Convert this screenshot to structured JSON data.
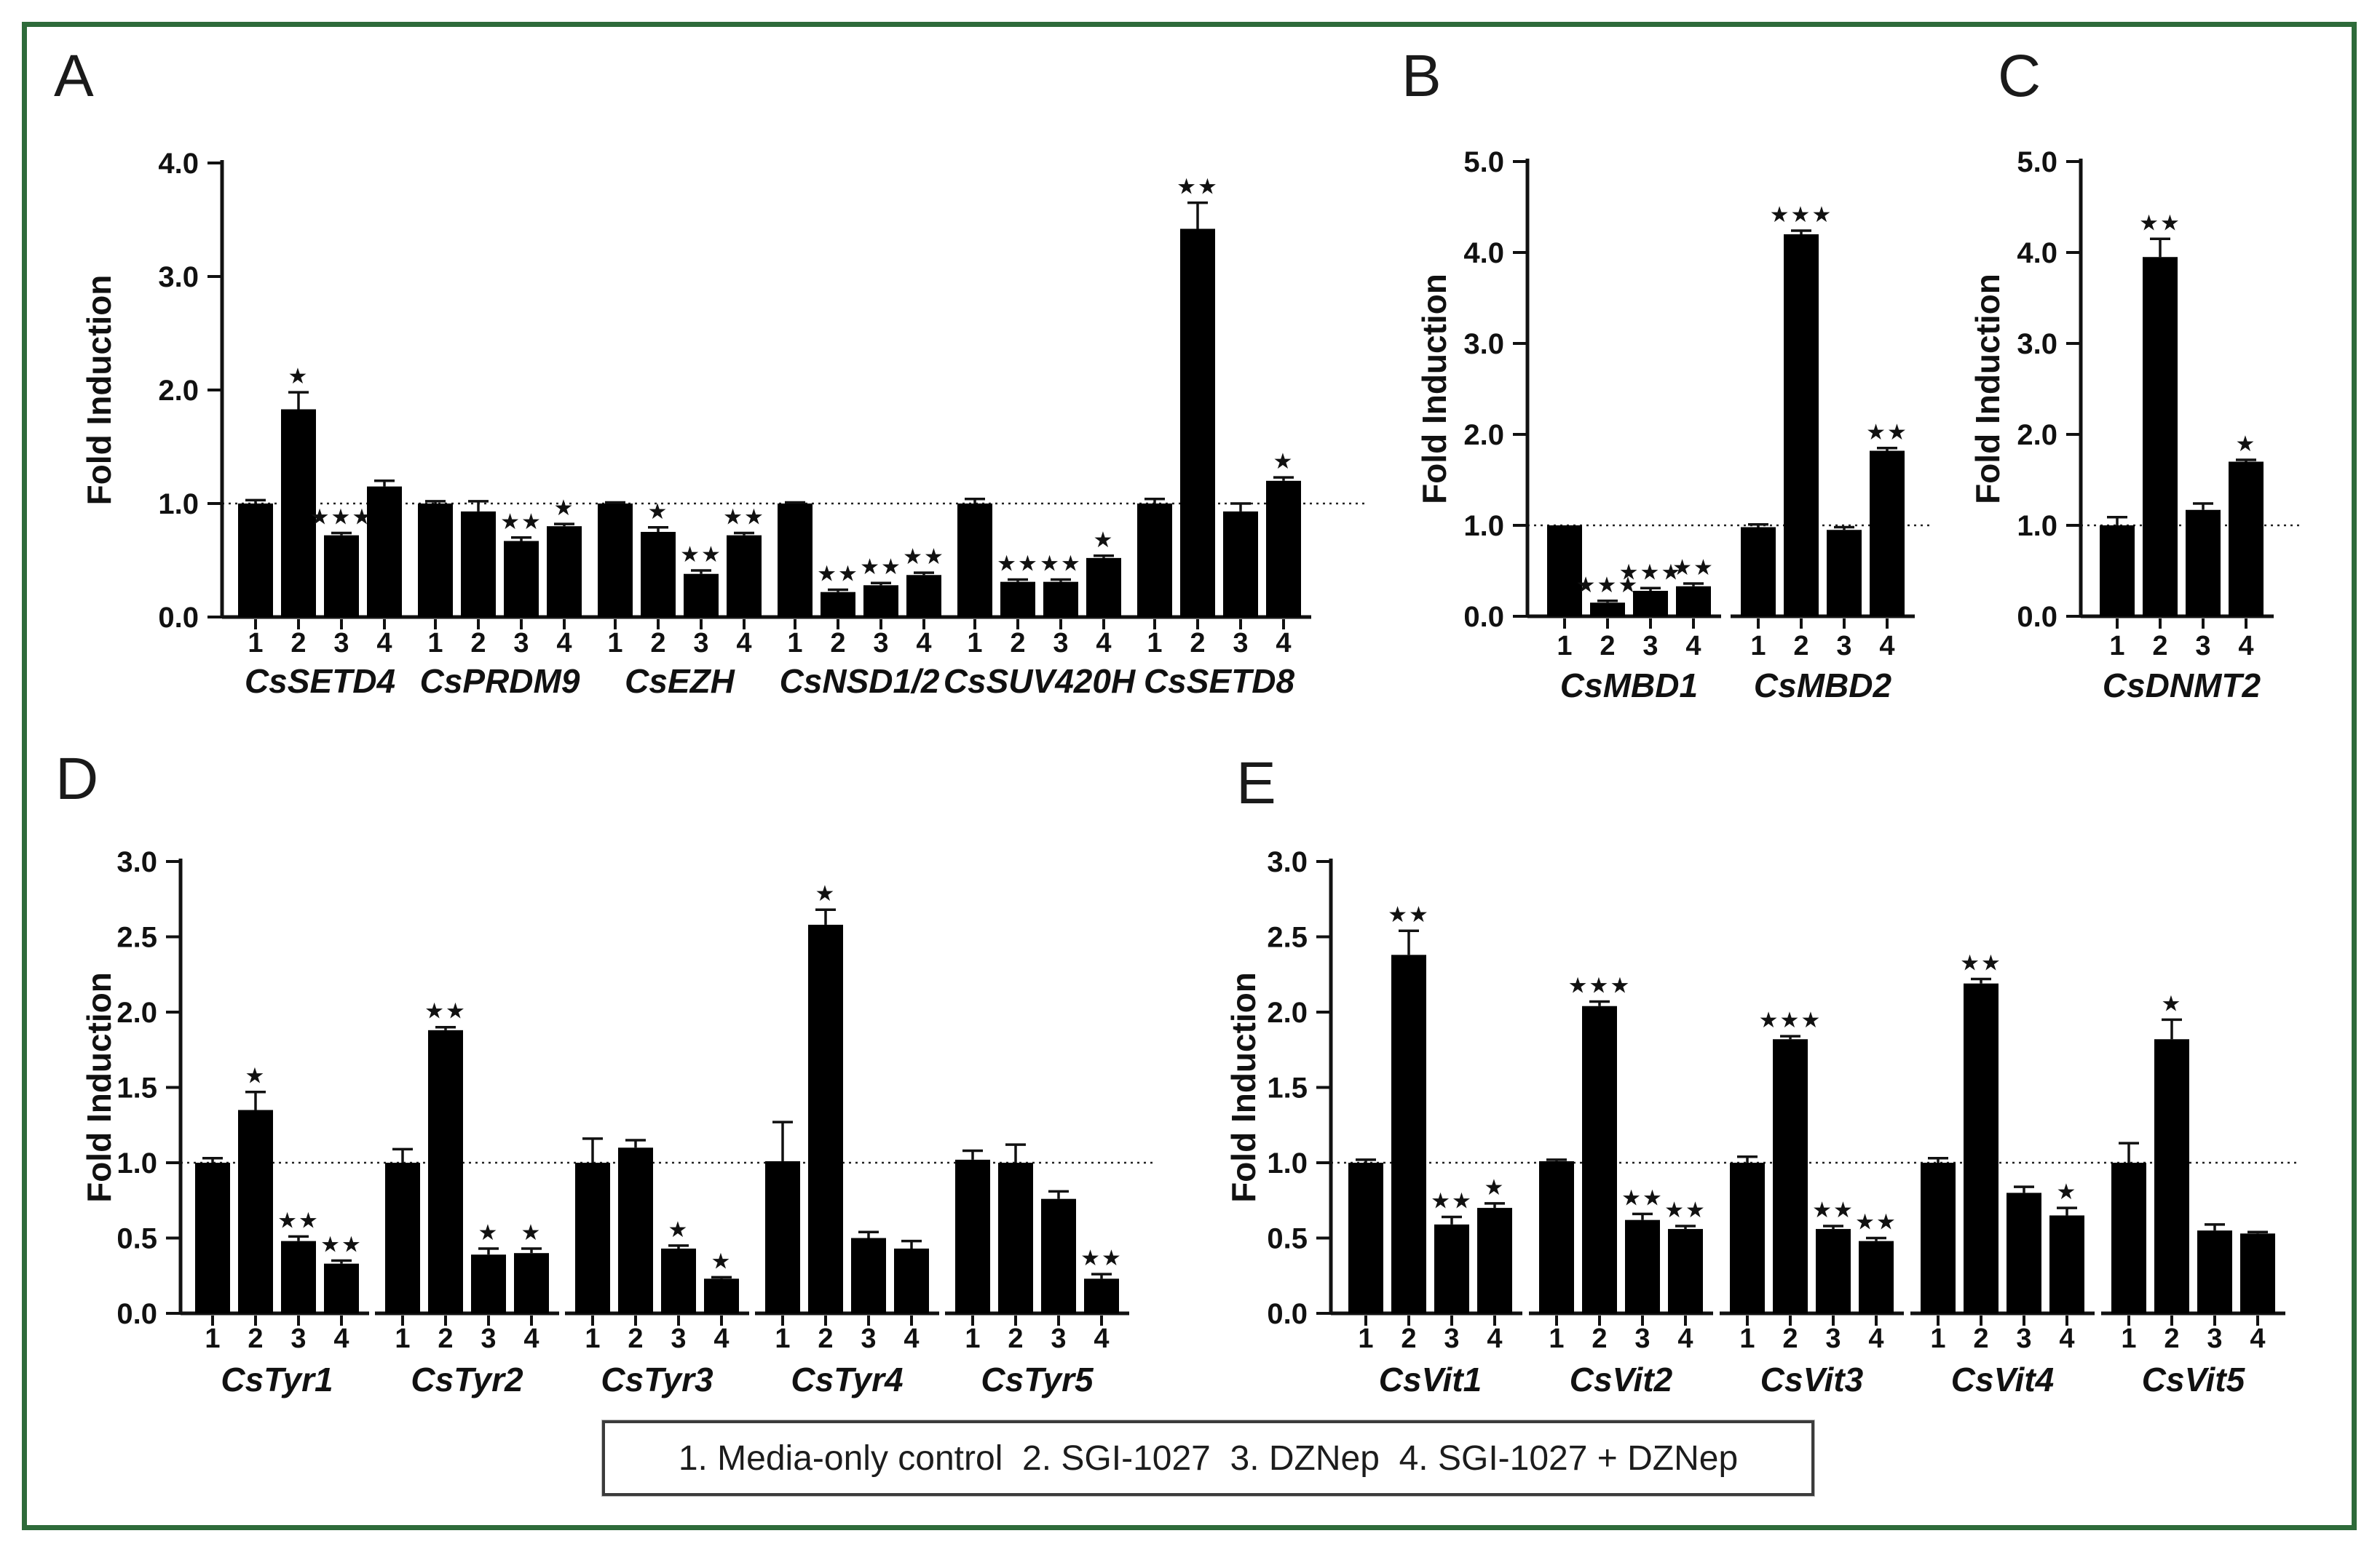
{
  "figure": {
    "border_color": "#2e6b3a",
    "bar_color": "#000000",
    "legend": {
      "text": "1. Media-only control  2. SGI-1027  3. DZNep  4. SGI-1027 + DZNep"
    }
  },
  "chart_data": [
    {
      "panel": "A",
      "type": "bar",
      "ylabel": "Fold Induction",
      "ylim": [
        0,
        4.0
      ],
      "yticks": [
        "0.0",
        "1.0",
        "2.0",
        "3.0",
        "4.0"
      ],
      "reference_line": 1.0,
      "bar_labels": [
        "1",
        "2",
        "3",
        "4"
      ],
      "groups": [
        {
          "name": "CsSETD4",
          "values": [
            1.0,
            1.83,
            0.72,
            1.15
          ],
          "errors": [
            0.03,
            0.15,
            0.02,
            0.05
          ],
          "sig": [
            "",
            "*",
            "***",
            ""
          ]
        },
        {
          "name": "CsPRDM9",
          "values": [
            1.0,
            0.93,
            0.67,
            0.8
          ],
          "errors": [
            0.02,
            0.09,
            0.03,
            0.02
          ],
          "sig": [
            "",
            "",
            "**",
            "*"
          ]
        },
        {
          "name": "CsEZH",
          "values": [
            1.0,
            0.75,
            0.38,
            0.72
          ],
          "errors": [
            0.01,
            0.04,
            0.03,
            0.02
          ],
          "sig": [
            "",
            "*",
            "**",
            "**"
          ]
        },
        {
          "name": "CsNSD1/2",
          "values": [
            1.0,
            0.22,
            0.28,
            0.37
          ],
          "errors": [
            0.01,
            0.02,
            0.02,
            0.02
          ],
          "sig": [
            "",
            "**",
            "**",
            "**"
          ]
        },
        {
          "name": "CsSUV420H",
          "values": [
            1.0,
            0.31,
            0.31,
            0.52
          ],
          "errors": [
            0.04,
            0.02,
            0.02,
            0.02
          ],
          "sig": [
            "",
            "**",
            "**",
            "*"
          ]
        },
        {
          "name": "CsSETD8",
          "values": [
            1.0,
            3.42,
            0.93,
            1.2
          ],
          "errors": [
            0.04,
            0.23,
            0.07,
            0.03
          ],
          "sig": [
            "",
            "**",
            "",
            "*"
          ]
        }
      ]
    },
    {
      "panel": "B",
      "type": "bar",
      "ylabel": "Fold Induction",
      "ylim": [
        0,
        5.0
      ],
      "yticks": [
        "0.0",
        "1.0",
        "2.0",
        "3.0",
        "4.0",
        "5.0"
      ],
      "reference_line": 1.0,
      "bar_labels": [
        "1",
        "2",
        "3",
        "4"
      ],
      "groups": [
        {
          "name": "CsMBD1",
          "values": [
            1.0,
            0.15,
            0.28,
            0.33
          ],
          "errors": [
            0,
            0.02,
            0.03,
            0.03
          ],
          "sig": [
            "",
            "***",
            "***",
            "**"
          ]
        },
        {
          "name": "CsMBD2",
          "values": [
            0.98,
            4.2,
            0.95,
            1.82
          ],
          "errors": [
            0.03,
            0.04,
            0.03,
            0.03
          ],
          "sig": [
            "",
            "***",
            "",
            "**"
          ]
        }
      ]
    },
    {
      "panel": "C",
      "type": "bar",
      "ylabel": "Fold Induction",
      "ylim": [
        0,
        5.0
      ],
      "yticks": [
        "0.0",
        "1.0",
        "2.0",
        "3.0",
        "4.0",
        "5.0"
      ],
      "reference_line": 1.0,
      "bar_labels": [
        "1",
        "2",
        "3",
        "4"
      ],
      "groups": [
        {
          "name": "CsDNMT2",
          "values": [
            1.0,
            3.95,
            1.17,
            1.7
          ],
          "errors": [
            0.09,
            0.2,
            0.07,
            0.02
          ],
          "sig": [
            "",
            "**",
            "",
            "*"
          ]
        }
      ]
    },
    {
      "panel": "D",
      "type": "bar",
      "ylabel": "Fold Induction",
      "ylim": [
        0,
        3.0
      ],
      "yticks": [
        "0.0",
        "0.5",
        "1.0",
        "1.5",
        "2.0",
        "2.5",
        "3.0"
      ],
      "reference_line": 1.0,
      "bar_labels": [
        "1",
        "2",
        "3",
        "4"
      ],
      "groups": [
        {
          "name": "CsTyr1",
          "values": [
            1.0,
            1.35,
            0.48,
            0.33
          ],
          "errors": [
            0.03,
            0.12,
            0.03,
            0.02
          ],
          "sig": [
            "",
            "*",
            "**",
            "**"
          ]
        },
        {
          "name": "CsTyr2",
          "values": [
            1.0,
            1.88,
            0.39,
            0.4
          ],
          "errors": [
            0.09,
            0.02,
            0.04,
            0.03
          ],
          "sig": [
            "",
            "**",
            "*",
            "*"
          ]
        },
        {
          "name": "CsTyr3",
          "values": [
            1.0,
            1.1,
            0.43,
            0.23
          ],
          "errors": [
            0.16,
            0.05,
            0.02,
            0.01
          ],
          "sig": [
            "",
            "",
            "*",
            "*"
          ]
        },
        {
          "name": "CsTyr4",
          "values": [
            1.01,
            2.58,
            0.5,
            0.43
          ],
          "errors": [
            0.26,
            0.1,
            0.04,
            0.05
          ],
          "sig": [
            "",
            "*",
            "",
            ""
          ]
        },
        {
          "name": "CsTyr5",
          "values": [
            1.02,
            1.0,
            0.76,
            0.23
          ],
          "errors": [
            0.06,
            0.12,
            0.05,
            0.03
          ],
          "sig": [
            "",
            "",
            "",
            "**"
          ]
        }
      ]
    },
    {
      "panel": "E",
      "type": "bar",
      "ylabel": "Fold Induction",
      "ylim": [
        0,
        3.0
      ],
      "yticks": [
        "0.0",
        "0.5",
        "1.0",
        "1.5",
        "2.0",
        "2.5",
        "3.0"
      ],
      "reference_line": 1.0,
      "bar_labels": [
        "1",
        "2",
        "3",
        "4"
      ],
      "groups": [
        {
          "name": "CsVit1",
          "values": [
            1.0,
            2.38,
            0.59,
            0.7
          ],
          "errors": [
            0.02,
            0.16,
            0.05,
            0.03
          ],
          "sig": [
            "",
            "**",
            "**",
            "*"
          ]
        },
        {
          "name": "CsVit2",
          "values": [
            1.01,
            2.04,
            0.62,
            0.56
          ],
          "errors": [
            0.01,
            0.03,
            0.04,
            0.02
          ],
          "sig": [
            "",
            "***",
            "**",
            "**"
          ]
        },
        {
          "name": "CsVit3",
          "values": [
            1.0,
            1.82,
            0.56,
            0.48
          ],
          "errors": [
            0.04,
            0.02,
            0.02,
            0.02
          ],
          "sig": [
            "",
            "***",
            "**",
            "**"
          ]
        },
        {
          "name": "CsVit4",
          "values": [
            1.0,
            2.19,
            0.8,
            0.65
          ],
          "errors": [
            0.03,
            0.03,
            0.04,
            0.05
          ],
          "sig": [
            "",
            "**",
            "",
            "*"
          ]
        },
        {
          "name": "CsVit5",
          "values": [
            1.0,
            1.82,
            0.55,
            0.53
          ],
          "errors": [
            0.13,
            0.13,
            0.04,
            0.01
          ],
          "sig": [
            "",
            "*",
            "",
            ""
          ]
        }
      ]
    }
  ]
}
